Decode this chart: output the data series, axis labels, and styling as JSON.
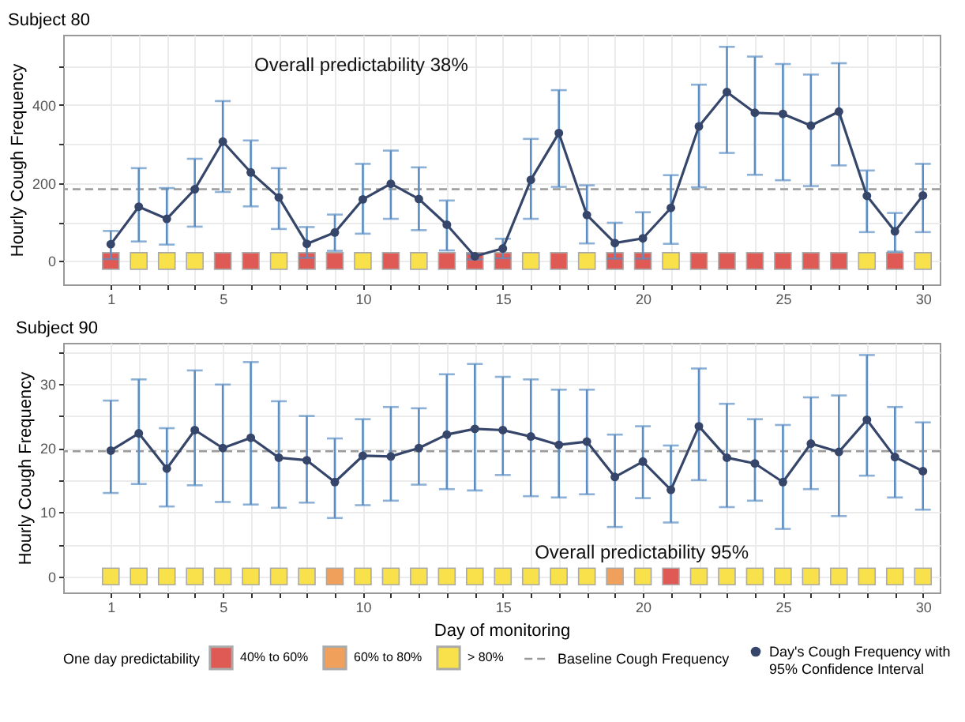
{
  "chart_data": [
    {
      "type": "line",
      "title": "Subject 80",
      "ylabel": "Hourly Cough Frequency",
      "annotations": [
        "Overall predictability 38%"
      ],
      "x": [
        1,
        2,
        3,
        4,
        5,
        6,
        7,
        8,
        9,
        10,
        11,
        12,
        13,
        14,
        15,
        16,
        17,
        18,
        19,
        20,
        21,
        22,
        23,
        24,
        25,
        26,
        27,
        28,
        29,
        30
      ],
      "xlim": [
        -0.7,
        30.6
      ],
      "xticks": [
        1,
        {
          "value": 2,
          "label": null
        },
        {
          "value": 3,
          "label": null
        },
        {
          "value": 4,
          "label": null
        },
        5,
        {
          "value": 6,
          "label": null
        },
        {
          "value": 7,
          "label": null
        },
        {
          "value": 8,
          "label": null
        },
        {
          "value": 9,
          "label": null
        },
        10,
        {
          "value": 11,
          "label": null
        },
        {
          "value": 12,
          "label": null
        },
        {
          "value": 13,
          "label": null
        },
        {
          "value": 14,
          "label": null
        },
        15,
        {
          "value": 16,
          "label": null
        },
        {
          "value": 17,
          "label": null
        },
        {
          "value": 18,
          "label": null
        },
        {
          "value": 19,
          "label": null
        },
        20,
        {
          "value": 21,
          "label": null
        },
        {
          "value": 22,
          "label": null
        },
        {
          "value": 23,
          "label": null
        },
        {
          "value": 24,
          "label": null
        },
        25,
        {
          "value": 26,
          "label": null
        },
        {
          "value": 27,
          "label": null
        },
        {
          "value": 28,
          "label": null
        },
        {
          "value": 29,
          "label": null
        },
        30
      ],
      "ylim": [
        -60,
        580
      ],
      "yticks": [
        0,
        {
          "value": 100,
          "label": null
        },
        200,
        {
          "value": 300,
          "label": null
        },
        400,
        {
          "value": 500,
          "label": null
        }
      ],
      "grid": true,
      "marker": "circle",
      "series": [
        {
          "type": "line",
          "color": "#36466a",
          "values": [
            43,
            139,
            108,
            184,
            306,
            227,
            163,
            44,
            73,
            158,
            198,
            159,
            93,
            12,
            32,
            208,
            328,
            118,
            46,
            58,
            136,
            345,
            433,
            380,
            377,
            347,
            383,
            167,
            76,
            168
          ],
          "errors": [
            [
              5,
              77
            ],
            [
              50,
              238
            ],
            [
              42,
              187
            ],
            [
              88,
              262
            ],
            [
              177,
              410
            ],
            [
              140,
              309
            ],
            [
              82,
              238
            ],
            [
              8,
              87
            ],
            [
              26,
              119
            ],
            [
              70,
              249
            ],
            [
              108,
              283
            ],
            [
              79,
              240
            ],
            [
              27,
              155
            ],
            [
              4,
              18
            ],
            [
              7,
              57
            ],
            [
              108,
              313
            ],
            [
              190,
              438
            ],
            [
              45,
              194
            ],
            [
              6,
              98
            ],
            [
              6,
              125
            ],
            [
              44,
              220
            ],
            [
              189,
              452
            ],
            [
              277,
              549
            ],
            [
              221,
              524
            ],
            [
              207,
              505
            ],
            [
              192,
              478
            ],
            [
              245,
              507
            ],
            [
              74,
              232
            ],
            [
              24,
              123
            ],
            [
              74,
              249
            ]
          ]
        },
        {
          "type": "scatter",
          "marker": "square",
          "color": "#e05a55",
          "x": [
            1,
            5,
            6,
            8,
            9,
            11,
            13,
            14,
            15,
            17,
            19,
            20,
            22,
            23,
            24,
            25,
            26,
            27,
            29
          ],
          "values": [
            0,
            0,
            0,
            0,
            0,
            0,
            0,
            0,
            0,
            0,
            0,
            0,
            0,
            0,
            0,
            0,
            0,
            0,
            0
          ]
        },
        {
          "type": "scatter",
          "marker": "square",
          "color": "#f9e14b",
          "x": [
            2,
            3,
            4,
            7,
            10,
            12,
            16,
            18,
            21,
            28,
            30
          ],
          "values": [
            0,
            0,
            0,
            0,
            0,
            0,
            0,
            0,
            0,
            0,
            0
          ]
        }
      ],
      "ref_lines": [
        {
          "axis": "y",
          "value": 184,
          "line_style": "dashed",
          "color": "#9a9a9a"
        }
      ]
    },
    {
      "type": "line",
      "title": "Subject 90",
      "xlabel": "Day of monitoring",
      "ylabel": "Hourly Cough Frequency",
      "annotations": [
        "Overall predictability 95%"
      ],
      "legend_title": "One day predictability",
      "legend": "bottom",
      "x": [
        1,
        2,
        3,
        4,
        5,
        6,
        7,
        8,
        9,
        10,
        11,
        12,
        13,
        14,
        15,
        16,
        17,
        18,
        19,
        20,
        21,
        22,
        23,
        24,
        25,
        26,
        27,
        28,
        29,
        30
      ],
      "xlim": [
        -0.7,
        30.6
      ],
      "xticks": [
        1,
        {
          "value": 2,
          "label": null
        },
        {
          "value": 3,
          "label": null
        },
        {
          "value": 4,
          "label": null
        },
        5,
        {
          "value": 6,
          "label": null
        },
        {
          "value": 7,
          "label": null
        },
        {
          "value": 8,
          "label": null
        },
        {
          "value": 9,
          "label": null
        },
        10,
        {
          "value": 11,
          "label": null
        },
        {
          "value": 12,
          "label": null
        },
        {
          "value": 13,
          "label": null
        },
        {
          "value": 14,
          "label": null
        },
        15,
        {
          "value": 16,
          "label": null
        },
        {
          "value": 17,
          "label": null
        },
        {
          "value": 18,
          "label": null
        },
        {
          "value": 19,
          "label": null
        },
        20,
        {
          "value": 21,
          "label": null
        },
        {
          "value": 22,
          "label": null
        },
        {
          "value": 23,
          "label": null
        },
        {
          "value": 24,
          "label": null
        },
        25,
        {
          "value": 26,
          "label": null
        },
        {
          "value": 27,
          "label": null
        },
        {
          "value": 28,
          "label": null
        },
        {
          "value": 29,
          "label": null
        },
        30
      ],
      "ylim": [
        -2.5,
        36.4
      ],
      "yticks": [
        0,
        {
          "value": 5,
          "label": null
        },
        10,
        {
          "value": 15,
          "label": null
        },
        20,
        {
          "value": 25,
          "label": null
        },
        30,
        {
          "value": 35,
          "label": null
        }
      ],
      "grid": true,
      "marker": "circle",
      "series": [
        {
          "name": "Day's Cough Frequency with 95% Confidence Interval",
          "type": "line",
          "color": "#36466a",
          "values": [
            19.6,
            22.3,
            16.8,
            22.8,
            20.0,
            21.6,
            18.5,
            18.1,
            14.7,
            18.8,
            18.7,
            20.0,
            22.1,
            23.0,
            22.8,
            21.8,
            20.5,
            21.0,
            15.5,
            17.9,
            13.5,
            23.4,
            18.5,
            17.6,
            14.7,
            20.7,
            19.4,
            24.4,
            18.6,
            16.4
          ],
          "errors": [
            [
              13.0,
              27.4
            ],
            [
              14.4,
              30.7
            ],
            [
              10.9,
              23.1
            ],
            [
              14.2,
              32.1
            ],
            [
              11.6,
              29.9
            ],
            [
              11.2,
              33.4
            ],
            [
              10.7,
              27.3
            ],
            [
              11.5,
              25.0
            ],
            [
              9.1,
              21.5
            ],
            [
              11.1,
              24.5
            ],
            [
              11.8,
              26.4
            ],
            [
              14.3,
              26.2
            ],
            [
              13.6,
              31.5
            ],
            [
              13.4,
              33.1
            ],
            [
              15.8,
              31.1
            ],
            [
              12.5,
              30.7
            ],
            [
              12.3,
              29.1
            ],
            [
              12.8,
              29.1
            ],
            [
              7.7,
              22.1
            ],
            [
              12.2,
              23.4
            ],
            [
              8.4,
              20.4
            ],
            [
              15.0,
              32.4
            ],
            [
              10.8,
              26.9
            ],
            [
              11.8,
              24.5
            ],
            [
              7.4,
              23.6
            ],
            [
              13.6,
              27.9
            ],
            [
              9.4,
              28.2
            ],
            [
              15.7,
              34.5
            ],
            [
              12.3,
              26.4
            ],
            [
              10.4,
              24.0
            ]
          ]
        },
        {
          "name": "40% to 60%",
          "type": "scatter",
          "marker": "square",
          "color": "#e05a55",
          "x": [
            21
          ],
          "values": [
            0
          ]
        },
        {
          "name": "60% to 80%",
          "type": "scatter",
          "marker": "square",
          "color": "#f0a05a",
          "x": [
            9,
            19
          ],
          "values": [
            0,
            0
          ]
        },
        {
          "name": "> 80%",
          "type": "scatter",
          "marker": "square",
          "color": "#f9e14b",
          "x": [
            1,
            2,
            3,
            4,
            5,
            6,
            7,
            8,
            10,
            11,
            12,
            13,
            14,
            15,
            16,
            17,
            18,
            20,
            22,
            23,
            24,
            25,
            26,
            27,
            28,
            29,
            30
          ],
          "values": [
            0,
            0,
            0,
            0,
            0,
            0,
            0,
            0,
            0,
            0,
            0,
            0,
            0,
            0,
            0,
            0,
            0,
            0,
            0,
            0,
            0,
            0,
            0,
            0,
            0,
            0,
            0
          ]
        }
      ],
      "ref_lines": [
        {
          "axis": "y",
          "value": 19.5,
          "label": "Baseline Cough Frequency",
          "line_style": "dashed",
          "color": "#9a9a9a"
        }
      ]
    }
  ]
}
